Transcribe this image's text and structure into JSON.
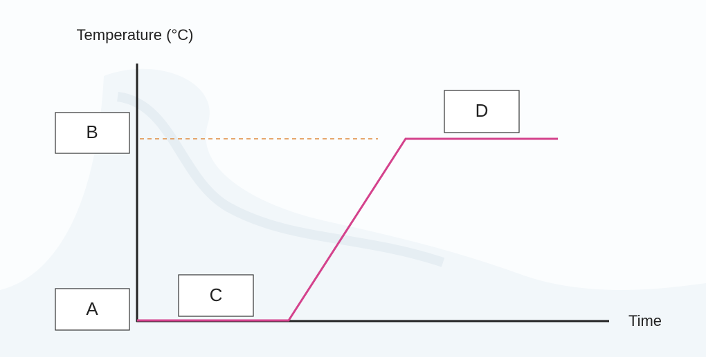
{
  "diagram": {
    "y_axis_label": "Temperature (°C)",
    "x_axis_label": "Time",
    "boxes": [
      {
        "label": "A"
      },
      {
        "label": "B"
      },
      {
        "label": "C"
      },
      {
        "label": "D"
      }
    ]
  }
}
